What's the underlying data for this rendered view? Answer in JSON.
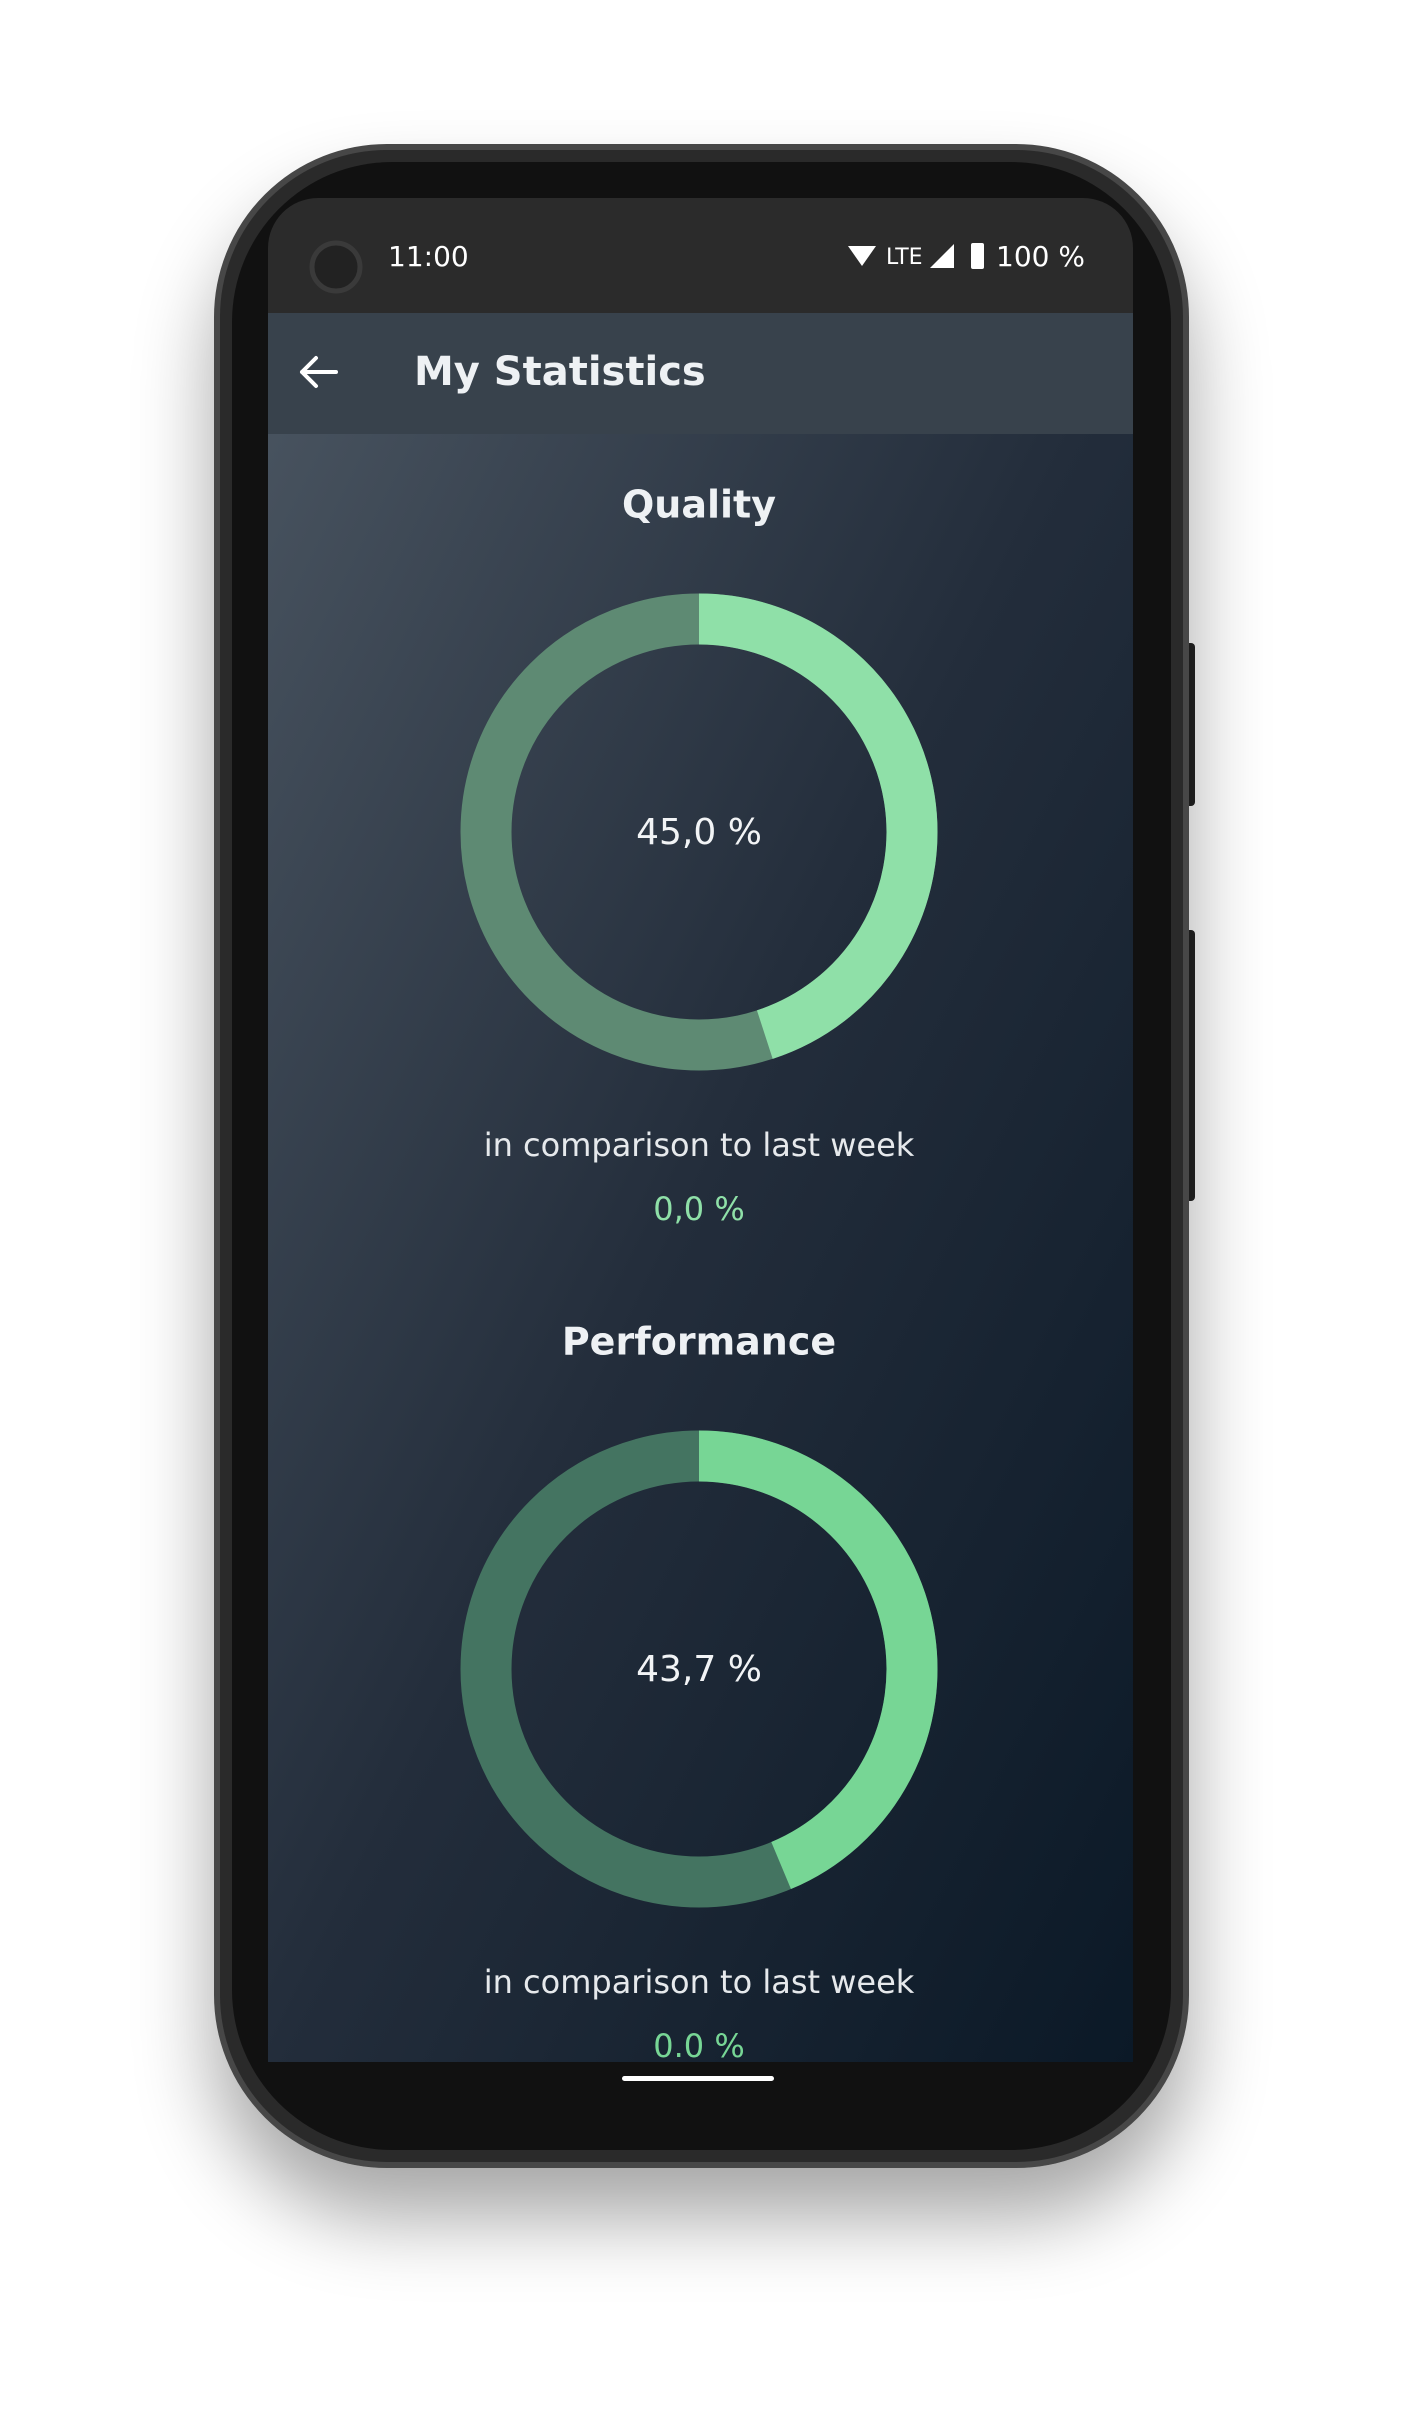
{
  "status_bar": {
    "time": "11:00",
    "network": "LTE",
    "battery": "100 %"
  },
  "app_bar": {
    "title": "My Statistics"
  },
  "sections": [
    {
      "title": "Quality",
      "value": 45.0,
      "value_label": "45,0 %",
      "comparison": "in comparison to last week",
      "change": "0,0 %",
      "color": "#8fe0a8",
      "track_color": "#5e8a73"
    },
    {
      "title": "Performance",
      "value": 43.7,
      "value_label": "43,7 %",
      "comparison": "in comparison to last week",
      "change": "0.0 %",
      "color": "#77d695",
      "track_color": "#447461"
    }
  ]
}
